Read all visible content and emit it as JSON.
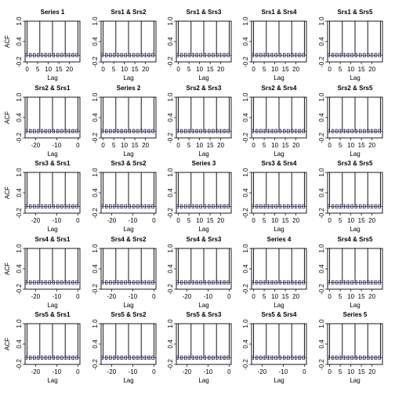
{
  "chart_data": {
    "type": "bar",
    "y_axis": {
      "ticks": [
        -0.2,
        0.4,
        1.0
      ],
      "ylim": [
        -0.2,
        1.0
      ]
    },
    "x_axis": {
      "label": "Lag"
    },
    "y_label": "ACF",
    "confidence_band": 0.05,
    "zero_line": 0,
    "spike_value": 1.0,
    "spike_period": 6,
    "colors": {
      "bars": "#000000",
      "band": "#2b2bd0",
      "frame": "#000000",
      "background": "#ffffff"
    },
    "panels": [
      {
        "title": "Series  1",
        "lag_range": [
          0,
          24
        ],
        "x_ticks": [
          0,
          5,
          10,
          15,
          20
        ]
      },
      {
        "title": "Srs1 & Srs2",
        "lag_range": [
          0,
          24
        ],
        "x_ticks": [
          0,
          5,
          10,
          15,
          20
        ]
      },
      {
        "title": "Srs1 & Srs3",
        "lag_range": [
          0,
          24
        ],
        "x_ticks": [
          0,
          5,
          10,
          15,
          20
        ]
      },
      {
        "title": "Srs1 & Srs4",
        "lag_range": [
          0,
          24
        ],
        "x_ticks": [
          0,
          5,
          10,
          15,
          20
        ]
      },
      {
        "title": "Srs1 & Srs5",
        "lag_range": [
          0,
          24
        ],
        "x_ticks": [
          0,
          5,
          10,
          15,
          20
        ]
      },
      {
        "title": "Srs2 & Srs1",
        "lag_range": [
          -24,
          0
        ],
        "x_ticks": [
          -20,
          -10,
          0
        ]
      },
      {
        "title": "Series  2",
        "lag_range": [
          0,
          24
        ],
        "x_ticks": [
          0,
          5,
          10,
          15,
          20
        ]
      },
      {
        "title": "Srs2 & Srs3",
        "lag_range": [
          0,
          24
        ],
        "x_ticks": [
          0,
          5,
          10,
          15,
          20
        ]
      },
      {
        "title": "Srs2 & Srs4",
        "lag_range": [
          0,
          24
        ],
        "x_ticks": [
          0,
          5,
          10,
          15,
          20
        ]
      },
      {
        "title": "Srs2 & Srs5",
        "lag_range": [
          0,
          24
        ],
        "x_ticks": [
          0,
          5,
          10,
          15,
          20
        ]
      },
      {
        "title": "Srs3 & Srs1",
        "lag_range": [
          -24,
          0
        ],
        "x_ticks": [
          -20,
          -10,
          0
        ]
      },
      {
        "title": "Srs3 & Srs2",
        "lag_range": [
          -24,
          0
        ],
        "x_ticks": [
          -20,
          -10,
          0
        ]
      },
      {
        "title": "Series  3",
        "lag_range": [
          0,
          24
        ],
        "x_ticks": [
          0,
          5,
          10,
          15,
          20
        ]
      },
      {
        "title": "Srs3 & Srs4",
        "lag_range": [
          0,
          24
        ],
        "x_ticks": [
          0,
          5,
          10,
          15,
          20
        ]
      },
      {
        "title": "Srs3 & Srs5",
        "lag_range": [
          0,
          24
        ],
        "x_ticks": [
          0,
          5,
          10,
          15,
          20
        ]
      },
      {
        "title": "Srs4 & Srs1",
        "lag_range": [
          -24,
          0
        ],
        "x_ticks": [
          -20,
          -10,
          0
        ]
      },
      {
        "title": "Srs4 & Srs2",
        "lag_range": [
          -24,
          0
        ],
        "x_ticks": [
          -20,
          -10,
          0
        ]
      },
      {
        "title": "Srs4 & Srs3",
        "lag_range": [
          -24,
          0
        ],
        "x_ticks": [
          -20,
          -10,
          0
        ]
      },
      {
        "title": "Series  4",
        "lag_range": [
          0,
          24
        ],
        "x_ticks": [
          0,
          5,
          10,
          15,
          20
        ]
      },
      {
        "title": "Srs4 & Srs5",
        "lag_range": [
          0,
          24
        ],
        "x_ticks": [
          0,
          5,
          10,
          15,
          20
        ]
      },
      {
        "title": "Srs5 & Srs1",
        "lag_range": [
          -24,
          0
        ],
        "x_ticks": [
          -20,
          -10,
          0
        ]
      },
      {
        "title": "Srs5 & Srs2",
        "lag_range": [
          -24,
          0
        ],
        "x_ticks": [
          -20,
          -10,
          0
        ]
      },
      {
        "title": "Srs5 & Srs3",
        "lag_range": [
          -24,
          0
        ],
        "x_ticks": [
          -20,
          -10,
          0
        ]
      },
      {
        "title": "Srs5 & Srs4",
        "lag_range": [
          -24,
          0
        ],
        "x_ticks": [
          -20,
          -10,
          0
        ]
      },
      {
        "title": "Series  5",
        "lag_range": [
          0,
          24
        ],
        "x_ticks": [
          0,
          5,
          10,
          15,
          20
        ]
      }
    ]
  }
}
